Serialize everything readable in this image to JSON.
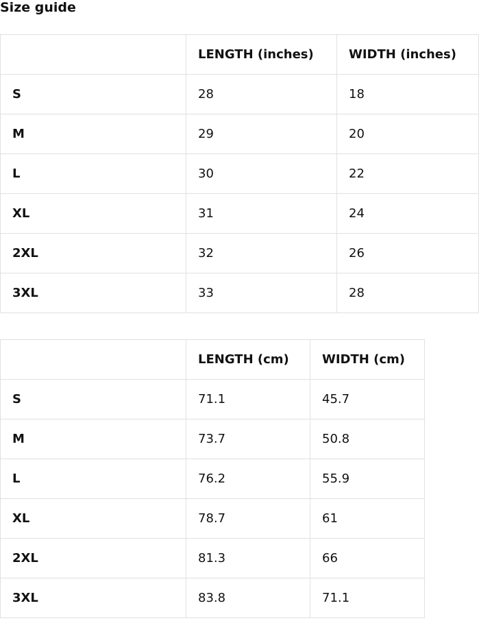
{
  "title": "Size guide",
  "tables": [
    {
      "headers": [
        "",
        "LENGTH (inches)",
        "WIDTH (inches)"
      ],
      "rows": [
        [
          "S",
          "28",
          "18"
        ],
        [
          "M",
          "29",
          "20"
        ],
        [
          "L",
          "30",
          "22"
        ],
        [
          "XL",
          "31",
          "24"
        ],
        [
          "2XL",
          "32",
          "26"
        ],
        [
          "3XL",
          "33",
          "28"
        ]
      ]
    },
    {
      "headers": [
        "",
        "LENGTH (cm)",
        "WIDTH (cm)"
      ],
      "rows": [
        [
          "S",
          "71.1",
          "45.7"
        ],
        [
          "M",
          "73.7",
          "50.8"
        ],
        [
          "L",
          "76.2",
          "55.9"
        ],
        [
          "XL",
          "78.7",
          "61"
        ],
        [
          "2XL",
          "81.3",
          "66"
        ],
        [
          "3XL",
          "83.8",
          "71.1"
        ]
      ]
    }
  ]
}
